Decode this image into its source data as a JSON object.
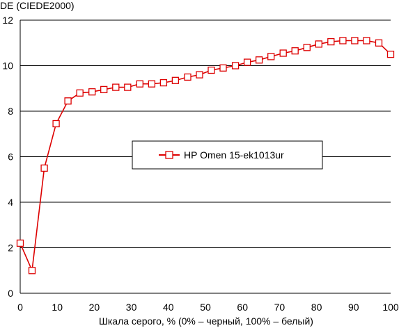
{
  "chart_data": {
    "type": "line",
    "title": "",
    "ylabel": "DE (CIEDE2000)",
    "xlabel": "Шкала серого, % (0% – черный, 100% – белый)",
    "xlim": [
      0,
      100
    ],
    "ylim": [
      0,
      12
    ],
    "x_ticks": [
      "0",
      "10",
      "20",
      "30",
      "40",
      "50",
      "60",
      "70",
      "80",
      "90",
      "100"
    ],
    "y_ticks": [
      "0",
      "2",
      "4",
      "6",
      "8",
      "10",
      "12"
    ],
    "grid": "horizontal",
    "legend_position": "center",
    "series": [
      {
        "name": "HP Omen 15-ek1013ur",
        "color": "#dd0000",
        "marker": "open-square",
        "x": [
          0,
          3.2,
          6.5,
          9.7,
          12.9,
          16.1,
          19.4,
          22.6,
          25.8,
          29.0,
          32.3,
          35.5,
          38.7,
          41.9,
          45.2,
          48.4,
          51.6,
          54.8,
          58.1,
          61.3,
          64.5,
          67.7,
          71.0,
          74.2,
          77.4,
          80.6,
          83.9,
          87.1,
          90.3,
          93.5,
          96.8,
          100
        ],
        "y": [
          2.2,
          1.0,
          5.5,
          7.45,
          8.45,
          8.8,
          8.85,
          8.95,
          9.05,
          9.05,
          9.2,
          9.2,
          9.25,
          9.35,
          9.5,
          9.6,
          9.8,
          9.9,
          10.0,
          10.15,
          10.25,
          10.4,
          10.55,
          10.65,
          10.8,
          10.95,
          11.05,
          11.1,
          11.1,
          11.1,
          11.0,
          10.5
        ]
      }
    ]
  }
}
